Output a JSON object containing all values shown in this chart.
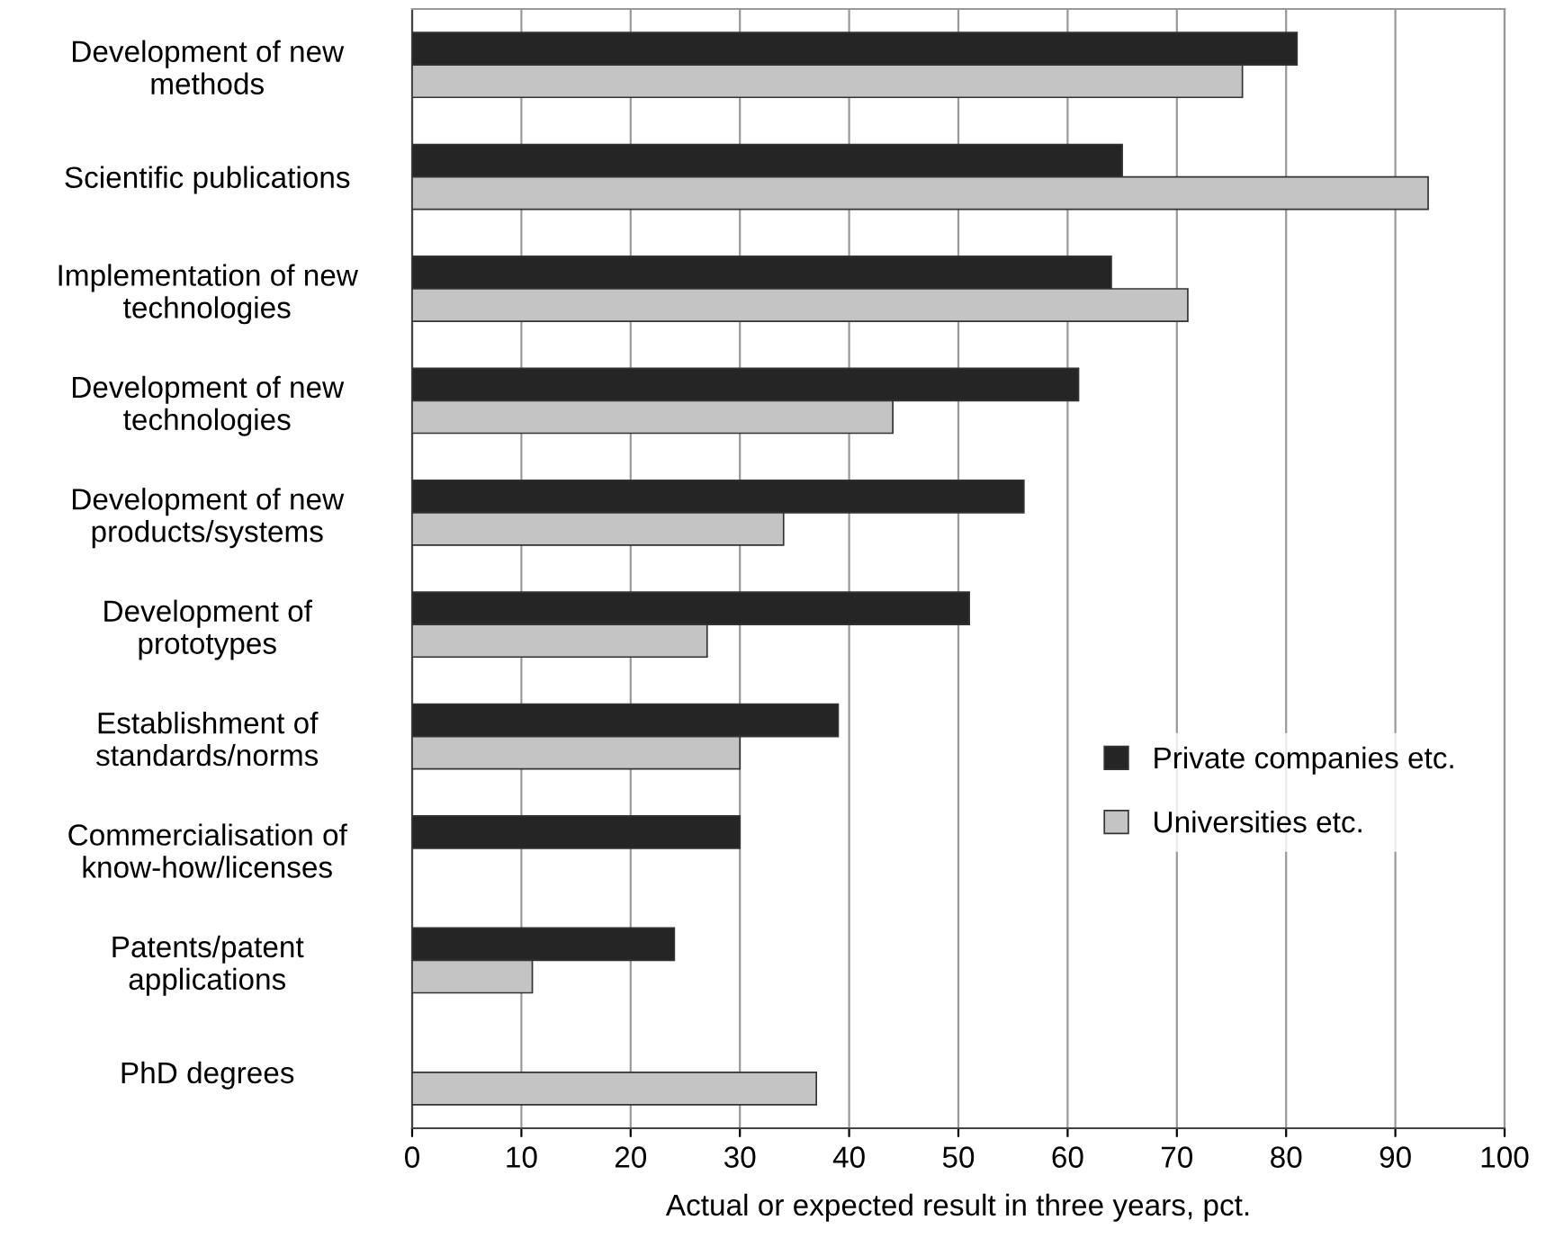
{
  "chart_data": {
    "type": "bar",
    "orientation": "horizontal",
    "categories": [
      "Development of new\nmethods",
      "Scientific publications",
      "Implementation of new\ntechnologies",
      "Development of new\ntechnologies",
      "Development of new\nproducts/systems",
      "Development of\nprototypes",
      "Establishment of\nstandards/norms",
      "Commercialisation of\nknow-how/licenses",
      "Patents/patent\napplications",
      "PhD degrees"
    ],
    "series": [
      {
        "name": "Private companies etc.",
        "color": "#252525",
        "values": [
          81,
          65,
          64,
          61,
          56,
          51,
          39,
          30,
          24,
          null
        ]
      },
      {
        "name": "Universities etc.",
        "color": "#c4c4c4",
        "values": [
          76,
          93,
          71,
          44,
          34,
          27,
          30,
          null,
          11,
          37
        ]
      }
    ],
    "xlabel": "Actual or expected result in three years, pct.",
    "xlim": [
      0,
      100
    ],
    "xticks": [
      0,
      10,
      20,
      30,
      40,
      50,
      60,
      70,
      80,
      90,
      100
    ],
    "grid": "x",
    "legend": "center right"
  }
}
